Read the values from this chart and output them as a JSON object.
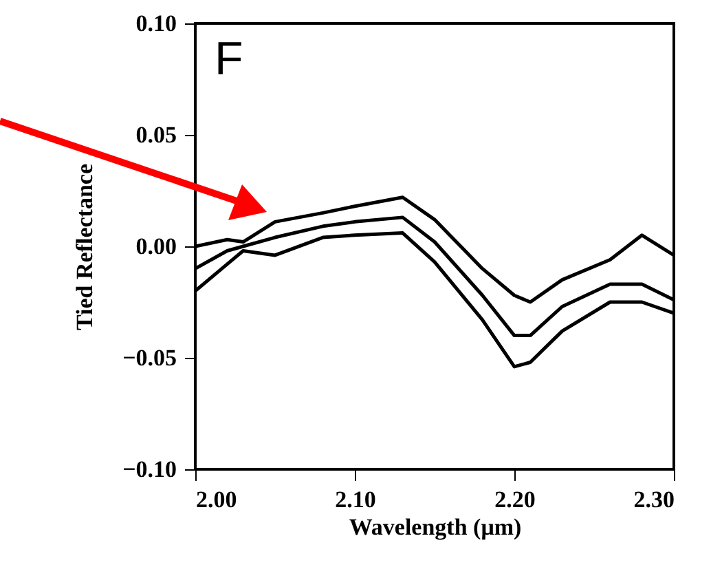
{
  "chart_data": {
    "type": "line",
    "xlabel": "Wavelength (μm)",
    "ylabel": "Tied Reflectance",
    "annotations": [
      "F"
    ],
    "x": [
      2.0,
      2.02,
      2.03,
      2.05,
      2.08,
      2.1,
      2.13,
      2.15,
      2.18,
      2.2,
      2.21,
      2.23,
      2.26,
      2.28,
      2.3
    ],
    "series": [
      {
        "color": "#000000",
        "values": [
          0.0,
          0.003,
          0.002,
          0.011,
          0.015,
          0.018,
          0.022,
          0.012,
          -0.01,
          -0.022,
          -0.025,
          -0.015,
          -0.006,
          0.005,
          -0.004
        ]
      },
      {
        "color": "#000000",
        "values": [
          -0.01,
          -0.002,
          0.0,
          0.004,
          0.009,
          0.011,
          0.013,
          0.002,
          -0.022,
          -0.04,
          -0.04,
          -0.027,
          -0.017,
          -0.017,
          -0.024
        ]
      },
      {
        "color": "#000000",
        "values": [
          -0.02,
          -0.008,
          -0.002,
          -0.004,
          0.004,
          0.005,
          0.006,
          -0.007,
          -0.033,
          -0.054,
          -0.052,
          -0.038,
          -0.025,
          -0.025,
          -0.03
        ]
      }
    ],
    "xlim": [
      2.0,
      2.3
    ],
    "xticks": [
      {
        "value": 2.0,
        "label": "2.00"
      },
      {
        "value": 2.1,
        "label": "2.10"
      },
      {
        "value": 2.2,
        "label": "2.20"
      },
      {
        "value": 2.3,
        "label": "2.30"
      }
    ],
    "ylim": [
      -0.1,
      0.1
    ],
    "yticks": [
      {
        "value": -0.1,
        "label": "−0.10"
      },
      {
        "value": -0.05,
        "label": "−0.05"
      },
      {
        "value": 0,
        "label": "0.00"
      },
      {
        "value": 0.05,
        "label": "0.05"
      },
      {
        "value": 0.1,
        "label": "0.10"
      }
    ],
    "grid": false
  }
}
